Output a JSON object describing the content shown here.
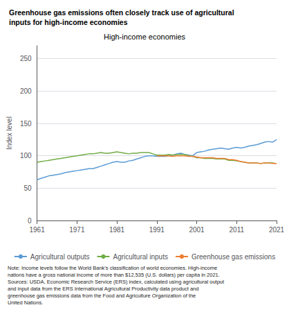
{
  "chart_data": {
    "type": "line",
    "title": "Greenhouse gas emissions often closely track use of agricultural\ninputs for high-income economies",
    "subtitle": "High-income economies",
    "ylabel": "Index level",
    "note": "Note: Income levels follow the World Bank’s classification of world economies. High-income\nnations have a gross national income of more than $12,535 (U.S. dollars) per capita in 2021.\nSources: USDA, Economic Research Service (ERS) index, calculated using agricultural output\nand input data from the ERS International Agricultural Productivity data product and\ngreenhouse gas emissions data from the Food and Agriculture Organization of the\nUnited Nations.",
    "x": [
      1961,
      1962,
      1963,
      1964,
      1965,
      1966,
      1967,
      1968,
      1969,
      1970,
      1971,
      1972,
      1973,
      1974,
      1975,
      1976,
      1977,
      1978,
      1979,
      1980,
      1981,
      1982,
      1983,
      1984,
      1985,
      1986,
      1987,
      1988,
      1989,
      1990,
      1991,
      1992,
      1993,
      1994,
      1995,
      1996,
      1997,
      1998,
      1999,
      2000,
      2001,
      2002,
      2003,
      2004,
      2005,
      2006,
      2007,
      2008,
      2009,
      2010,
      2011,
      2012,
      2013,
      2014,
      2015,
      2016,
      2017,
      2018,
      2019,
      2020,
      2021
    ],
    "series": [
      {
        "name": "Agricultural outputs",
        "color": "#5B9BD5",
        "values": [
          63,
          65,
          67,
          69,
          70,
          71,
          72,
          74,
          75,
          76,
          77,
          78,
          79,
          80,
          80,
          82,
          84,
          86,
          88,
          90,
          91,
          90,
          90,
          92,
          93,
          95,
          97,
          99,
          100,
          100,
          99,
          99,
          99,
          100,
          101,
          103,
          104,
          102,
          101,
          100,
          105,
          106,
          107,
          109,
          110,
          111,
          112,
          111,
          110,
          112,
          113,
          112,
          113,
          115,
          116,
          117,
          119,
          121,
          122,
          121,
          125
        ]
      },
      {
        "name": "Agricultural inputs",
        "color": "#70AD47",
        "values": [
          90,
          91,
          92,
          93,
          94,
          95,
          96,
          97,
          98,
          99,
          100,
          101,
          102,
          103,
          103,
          104,
          105,
          104,
          104,
          105,
          106,
          105,
          104,
          103,
          104,
          104,
          105,
          105,
          105,
          103,
          101,
          101,
          101,
          102,
          101,
          102,
          102,
          102,
          100,
          99,
          97,
          97,
          96,
          96,
          96,
          95,
          95,
          95,
          93,
          93,
          92,
          91,
          90,
          89,
          89,
          89,
          88,
          89,
          89,
          89,
          88
        ]
      },
      {
        "name": "Greenhouse gas emissions",
        "color": "#ED7D31",
        "values": [
          null,
          null,
          null,
          null,
          null,
          null,
          null,
          null,
          null,
          null,
          null,
          null,
          null,
          null,
          null,
          null,
          null,
          null,
          null,
          null,
          null,
          null,
          null,
          null,
          null,
          null,
          null,
          null,
          null,
          null,
          100,
          100,
          100,
          100,
          99,
          100,
          100,
          100,
          99,
          99,
          98,
          97,
          97,
          97,
          97,
          96,
          96,
          96,
          94,
          94,
          93,
          91,
          90,
          89,
          89,
          89,
          88,
          89,
          89,
          88,
          88
        ]
      }
    ],
    "xlim": [
      1961,
      2021
    ],
    "xticks": [
      1961,
      1971,
      1981,
      1991,
      2001,
      2011,
      2021
    ],
    "ylim": [
      0,
      270
    ],
    "yticks": [
      0,
      50,
      100,
      150,
      200,
      250
    ],
    "grid": true,
    "legend": "bottom"
  }
}
